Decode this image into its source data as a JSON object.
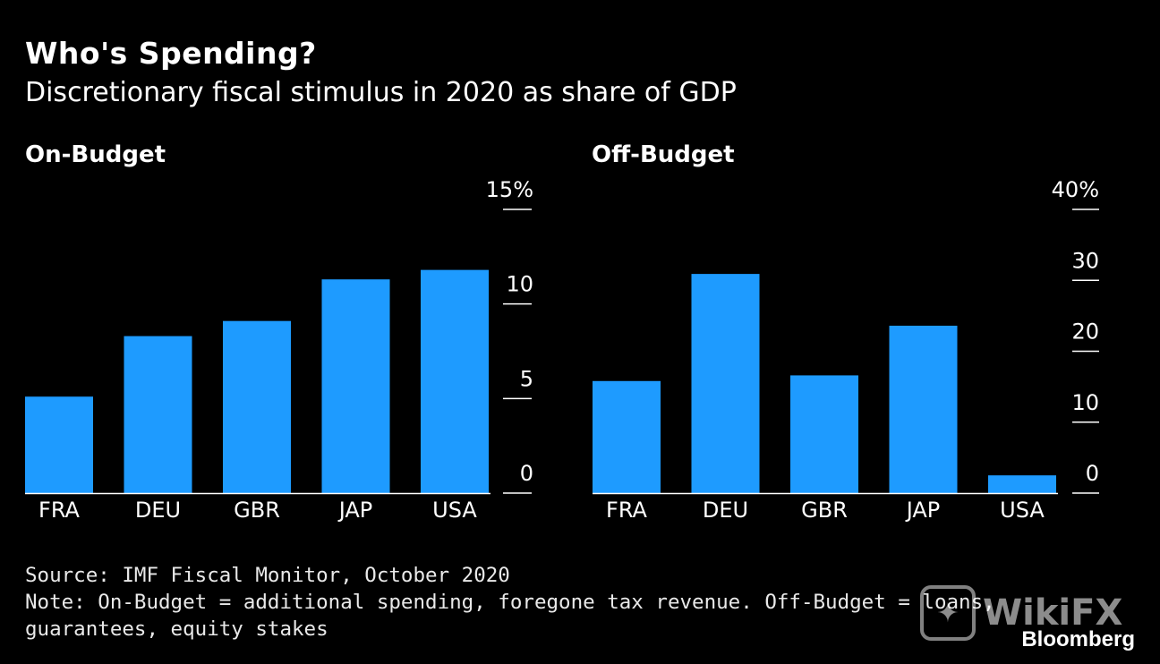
{
  "title": "Who's Spending?",
  "subtitle": "Discretionary fiscal stimulus in 2020 as share of GDP",
  "colors": {
    "bar": "#1e9bff",
    "background": "#000000",
    "text": "#ffffff",
    "axis": "#ffffff"
  },
  "chart_data": [
    {
      "type": "bar",
      "title": "On-Budget",
      "categories": [
        "FRA",
        "DEU",
        "GBR",
        "JAP",
        "USA"
      ],
      "values": [
        5.1,
        8.3,
        9.1,
        11.3,
        11.8
      ],
      "ylim": [
        0,
        15
      ],
      "yticks": [
        0,
        5,
        10,
        15
      ],
      "ytick_labels": [
        "0",
        "5",
        "10",
        "15%"
      ],
      "xlabel": "",
      "ylabel": "",
      "grid": false
    },
    {
      "type": "bar",
      "title": "Off-Budget",
      "categories": [
        "FRA",
        "DEU",
        "GBR",
        "JAP",
        "USA"
      ],
      "values": [
        15.8,
        30.9,
        16.6,
        23.6,
        2.5
      ],
      "ylim": [
        0,
        40
      ],
      "yticks": [
        0,
        10,
        20,
        30,
        40
      ],
      "ytick_labels": [
        "0",
        "10",
        "20",
        "30",
        "40%"
      ],
      "xlabel": "",
      "ylabel": "",
      "grid": false
    }
  ],
  "footer": {
    "source": "Source: IMF Fiscal Monitor, October 2020",
    "note_line1": "Note: On-Budget = additional spending, foregone tax revenue. Off-Budget = loans,",
    "note_line2": "guarantees, equity stakes"
  },
  "watermark": {
    "text": "WikiFX",
    "icon": "eagle-logo-icon"
  },
  "brand": "Bloomberg"
}
